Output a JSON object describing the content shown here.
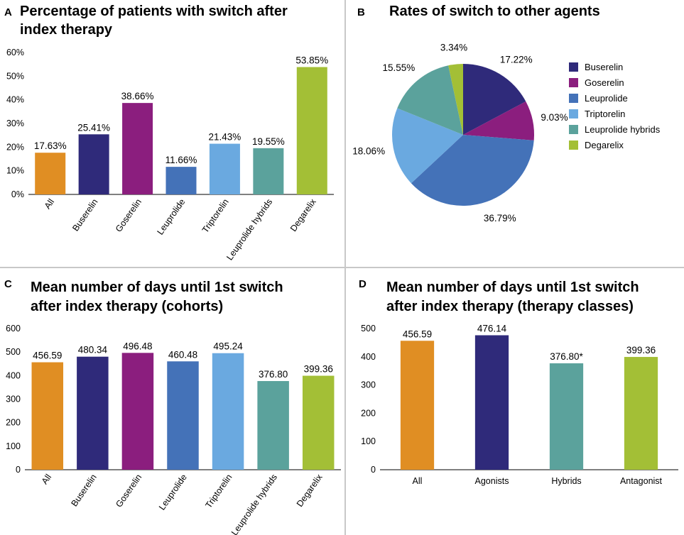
{
  "colors": {
    "orange": "#E08E23",
    "navy": "#2F2A7A",
    "purple": "#8B1E7E",
    "blue": "#4472B8",
    "lightblue": "#6AA9E0",
    "teal": "#5BA29C",
    "green": "#A3BF36"
  },
  "panels": {
    "A": {
      "letter": "A",
      "title_line1": "Percentage of patients with switch after",
      "title_line2": "index therapy"
    },
    "B": {
      "letter": "B",
      "title_line1": "Rates of switch to other agents"
    },
    "C": {
      "letter": "C",
      "title_line1": "Mean number of days until 1st switch",
      "title_line2": "after index therapy (cohorts)"
    },
    "D": {
      "letter": "D",
      "title_line1": "Mean number of days until 1st switch",
      "title_line2": "after index therapy (therapy classes)"
    }
  },
  "chart_data": [
    {
      "id": "A",
      "type": "bar",
      "title": "Percentage of patients with switch after index therapy",
      "categories": [
        "All",
        "Buserelin",
        "Goserelin",
        "Leuprolide",
        "Triptorelin",
        "Leuprolide hybrids",
        "Degarelix"
      ],
      "values": [
        17.63,
        25.41,
        38.66,
        11.66,
        21.43,
        19.55,
        53.85
      ],
      "labels": [
        "17.63%",
        "25.41%",
        "38.66%",
        "11.66%",
        "21.43%",
        "19.55%",
        "53.85%"
      ],
      "colors": [
        "#E08E23",
        "#2F2A7A",
        "#8B1E7E",
        "#4472B8",
        "#6AA9E0",
        "#5BA29C",
        "#A3BF36"
      ],
      "ylim": [
        0,
        60
      ],
      "yticks": [
        0,
        10,
        20,
        30,
        40,
        50,
        60
      ],
      "yticklabels": [
        "0%",
        "10%",
        "20%",
        "30%",
        "40%",
        "50%",
        "60%"
      ],
      "rotate_categories": true
    },
    {
      "id": "B",
      "type": "pie",
      "title": "Rates of switch to other agents",
      "categories": [
        "Buserelin",
        "Goserelin",
        "Leuprolide",
        "Triptorelin",
        "Leuprolide hybrids",
        "Degarelix"
      ],
      "values": [
        17.22,
        9.03,
        36.79,
        18.06,
        15.55,
        3.34
      ],
      "labels": [
        "17.22%",
        "9.03%",
        "36.79%",
        "18.06%",
        "15.55%",
        "3.34%"
      ],
      "colors": [
        "#2F2A7A",
        "#8B1E7E",
        "#4472B8",
        "#6AA9E0",
        "#5BA29C",
        "#A3BF36"
      ],
      "legend": "right"
    },
    {
      "id": "C",
      "type": "bar",
      "title": "Mean number of days until 1st switch after index therapy (cohorts)",
      "categories": [
        "All",
        "Buserelin",
        "Goserelin",
        "Leuprolide",
        "Triptorelin",
        "Leuprolide hybrids",
        "Degarelix"
      ],
      "values": [
        456.59,
        480.34,
        496.48,
        460.48,
        495.24,
        376.8,
        399.36
      ],
      "labels": [
        "456.59",
        "480.34",
        "496.48",
        "460.48",
        "495.24",
        "376.80",
        "399.36"
      ],
      "colors": [
        "#E08E23",
        "#2F2A7A",
        "#8B1E7E",
        "#4472B8",
        "#6AA9E0",
        "#5BA29C",
        "#A3BF36"
      ],
      "ylim": [
        0,
        600
      ],
      "yticks": [
        0,
        100,
        200,
        300,
        400,
        500,
        600
      ],
      "yticklabels": [
        "0",
        "100",
        "200",
        "300",
        "400",
        "500",
        "600"
      ],
      "rotate_categories": true
    },
    {
      "id": "D",
      "type": "bar",
      "title": "Mean number of days until 1st switch after index therapy (therapy classes)",
      "categories": [
        "All",
        "Agonists",
        "Hybrids",
        "Antagonist"
      ],
      "values": [
        456.59,
        476.14,
        376.8,
        399.36
      ],
      "labels": [
        "456.59",
        "476.14",
        "376.80*",
        "399.36"
      ],
      "colors": [
        "#E08E23",
        "#2F2A7A",
        "#5BA29C",
        "#A3BF36"
      ],
      "ylim": [
        0,
        500
      ],
      "yticks": [
        0,
        100,
        200,
        300,
        400,
        500
      ],
      "yticklabels": [
        "0",
        "100",
        "200",
        "300",
        "400",
        "500"
      ],
      "rotate_categories": false
    }
  ]
}
